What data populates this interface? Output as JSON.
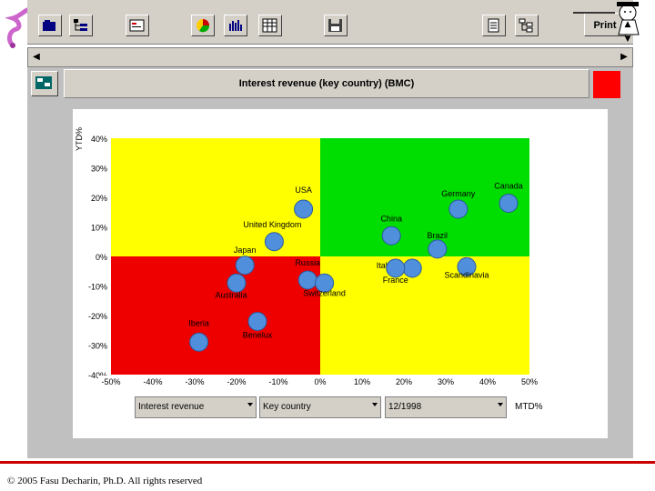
{
  "toolbar": {
    "print_label": "Print",
    "buttons": [
      "open-folder-icon",
      "tree-view-icon",
      "card-icon",
      "pie-chart-icon",
      "bar-chart-icon",
      "table-icon",
      "save-icon",
      "doc-icon",
      "hierarchy-icon"
    ]
  },
  "header": {
    "title": "Interest revenue (key country) (BMC)",
    "indicator_color": "#ff0000"
  },
  "chart_data": {
    "type": "scatter",
    "ylabel": "YTD%",
    "xlabel": "MTD%",
    "xlim": [
      -50,
      50
    ],
    "ylim": [
      -40,
      40
    ],
    "x_ticks": [
      "-50%",
      "-40%",
      "-30%",
      "-20%",
      "-10%",
      "0%",
      "10%",
      "20%",
      "30%",
      "40%",
      "50%"
    ],
    "y_ticks": [
      "40%",
      "30%",
      "20%",
      "10%",
      "0%",
      "-10%",
      "-20%",
      "-30%",
      "-40%"
    ],
    "quadrant_colors": {
      "top_left": "#ffff00",
      "top_right": "#00dd00",
      "bottom_left": "#ee0000",
      "bottom_right": "#ffff00"
    },
    "points": [
      {
        "label": "USA",
        "x": -4,
        "y": 16
      },
      {
        "label": "Germany",
        "x": 33,
        "y": 16
      },
      {
        "label": "Canada",
        "x": 45,
        "y": 18
      },
      {
        "label": "United Kingdom",
        "x": -11,
        "y": 5
      },
      {
        "label": "China",
        "x": 17,
        "y": 7
      },
      {
        "label": "Brazil",
        "x": 28,
        "y": 2.5
      },
      {
        "label": "Japan",
        "x": -18,
        "y": -3
      },
      {
        "label": "Italia",
        "x": 22,
        "y": -4
      },
      {
        "label": "Scandinavia",
        "x": 35,
        "y": -3.5
      },
      {
        "label": "Russia",
        "x": -3,
        "y": -8
      },
      {
        "label": "France",
        "x": 18,
        "y": -4
      },
      {
        "label": "Australia",
        "x": -20,
        "y": -9
      },
      {
        "label": "Switzerland",
        "x": 1,
        "y": -9
      },
      {
        "label": "Benelux",
        "x": -15,
        "y": -22
      },
      {
        "label": "Iberia",
        "x": -29,
        "y": -29
      }
    ]
  },
  "controls": {
    "measure": "Interest revenue",
    "dimension": "Key country",
    "period": "12/1998"
  },
  "footer": {
    "copyright": "© 2005 Fasu Decharin, Ph.D. All rights reserved"
  }
}
